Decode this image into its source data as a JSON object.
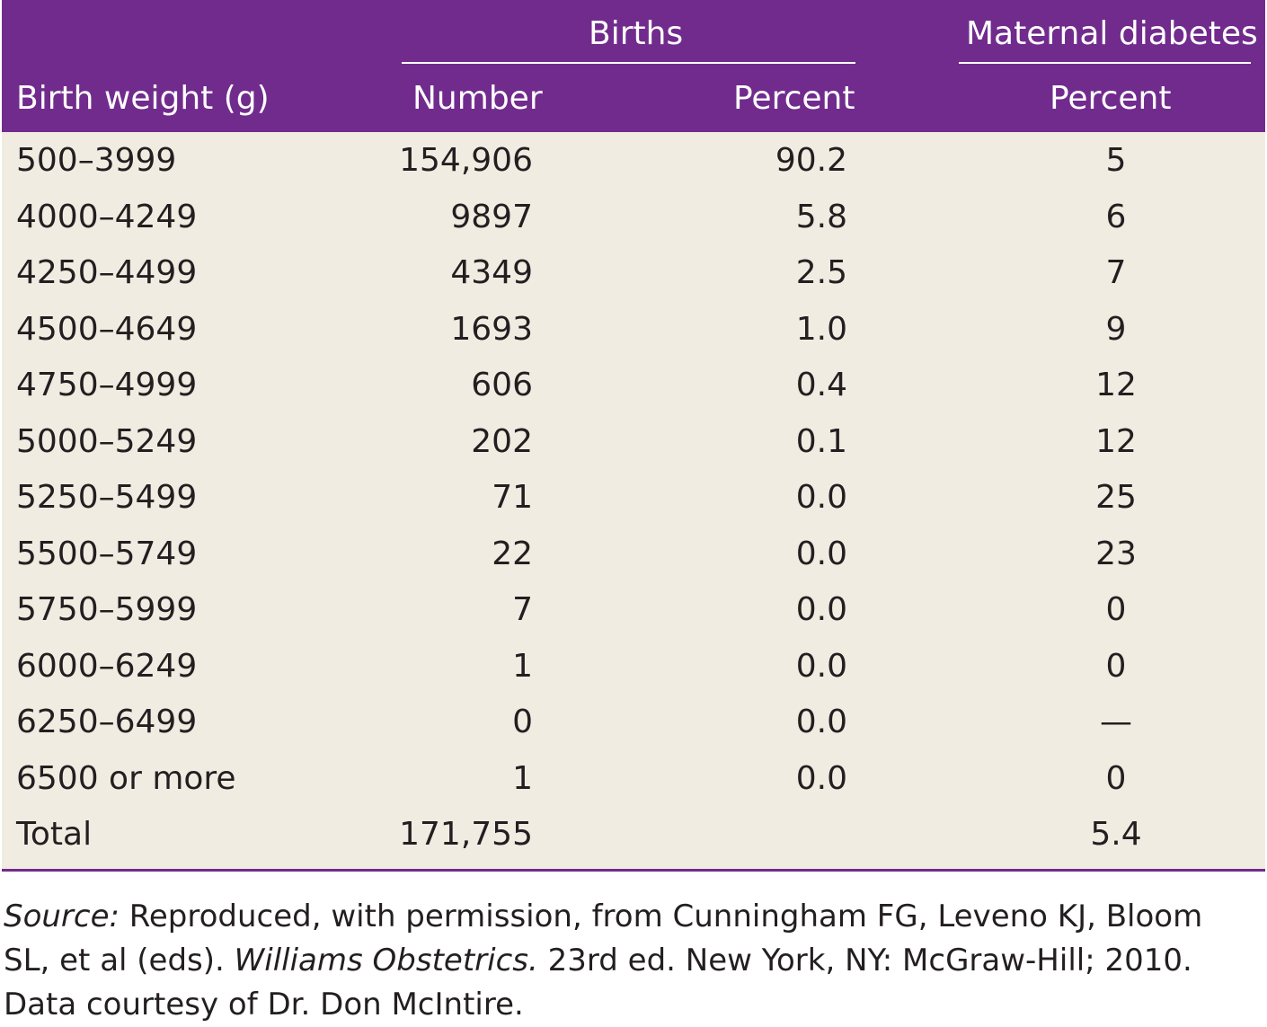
{
  "header": {
    "births_group": "Births",
    "diabetes_group": "Maternal diabetes",
    "col_weight": "Birth weight (g)",
    "col_number": "Number",
    "col_percent": "Percent",
    "col_diabetes_percent": "Percent"
  },
  "rows": [
    {
      "weight": "500–3999",
      "number": "154,906",
      "percent": "90.2",
      "diabetes": "5"
    },
    {
      "weight": "4000–4249",
      "number": "9897",
      "percent": "5.8",
      "diabetes": "6"
    },
    {
      "weight": "4250–4499",
      "number": "4349",
      "percent": "2.5",
      "diabetes": "7"
    },
    {
      "weight": "4500–4649",
      "number": "1693",
      "percent": "1.0",
      "diabetes": "9"
    },
    {
      "weight": "4750–4999",
      "number": "606",
      "percent": "0.4",
      "diabetes": "12"
    },
    {
      "weight": "5000–5249",
      "number": "202",
      "percent": "0.1",
      "diabetes": "12"
    },
    {
      "weight": "5250–5499",
      "number": "71",
      "percent": "0.0",
      "diabetes": "25"
    },
    {
      "weight": "5500–5749",
      "number": "22",
      "percent": "0.0",
      "diabetes": "23"
    },
    {
      "weight": "5750–5999",
      "number": "7",
      "percent": "0.0",
      "diabetes": "0"
    },
    {
      "weight": "6000–6249",
      "number": "1",
      "percent": "0.0",
      "diabetes": "0"
    },
    {
      "weight": "6250–6499",
      "number": "0",
      "percent": "0.0",
      "diabetes": "—"
    },
    {
      "weight": "6500 or more",
      "number": "1",
      "percent": "0.0",
      "diabetes": "0"
    },
    {
      "weight": "Total",
      "number": "171,755",
      "percent": "",
      "diabetes": "5.4"
    }
  ],
  "source": {
    "label": "Source:",
    "text_1": " Reproduced, with permission, from Cunningham FG, Leveno KJ, Bloom SL, et al (eds). ",
    "book": "Williams Obstetrics.",
    "text_2": " 23rd ed. New York, NY: McGraw-Hill; 2010. Data courtesy of Dr. Don McIntire."
  },
  "colors": {
    "header_bg": "#712b8d",
    "body_bg": "#f0ece2",
    "text": "#231f20"
  }
}
